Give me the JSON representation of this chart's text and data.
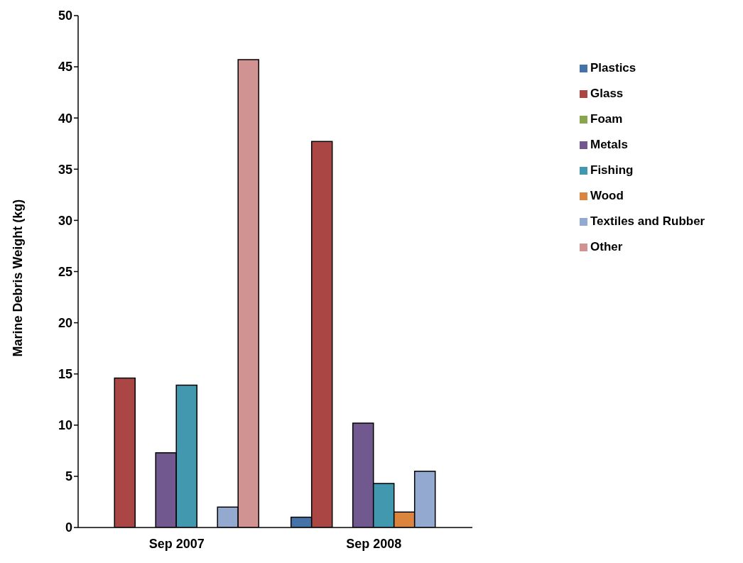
{
  "chart_data": {
    "type": "bar",
    "ylabel": "Marine Debris Weight (kg)",
    "categories": [
      "Sep 2007",
      "Sep 2008"
    ],
    "series": [
      {
        "name": "Plastics",
        "color": "#4572a7",
        "values": [
          null,
          1.0
        ]
      },
      {
        "name": "Glass",
        "color": "#aa4643",
        "values": [
          14.6,
          37.7
        ]
      },
      {
        "name": "Foam",
        "color": "#89a54e",
        "values": [
          0,
          0
        ]
      },
      {
        "name": "Metals",
        "color": "#71588f",
        "values": [
          7.3,
          10.2
        ]
      },
      {
        "name": "Fishing",
        "color": "#4198af",
        "values": [
          13.9,
          4.3
        ]
      },
      {
        "name": "Wood",
        "color": "#db843d",
        "values": [
          0,
          1.5
        ]
      },
      {
        "name": "Textiles and Rubber",
        "color": "#93a9cf",
        "values": [
          2.0,
          5.5
        ]
      },
      {
        "name": "Other",
        "color": "#d19392",
        "values": [
          45.7,
          0
        ]
      }
    ],
    "ylim": [
      0,
      50
    ],
    "yticks": [
      0,
      5,
      10,
      15,
      20,
      25,
      30,
      35,
      40,
      45,
      50
    ],
    "grid": false,
    "legend": "top right"
  }
}
